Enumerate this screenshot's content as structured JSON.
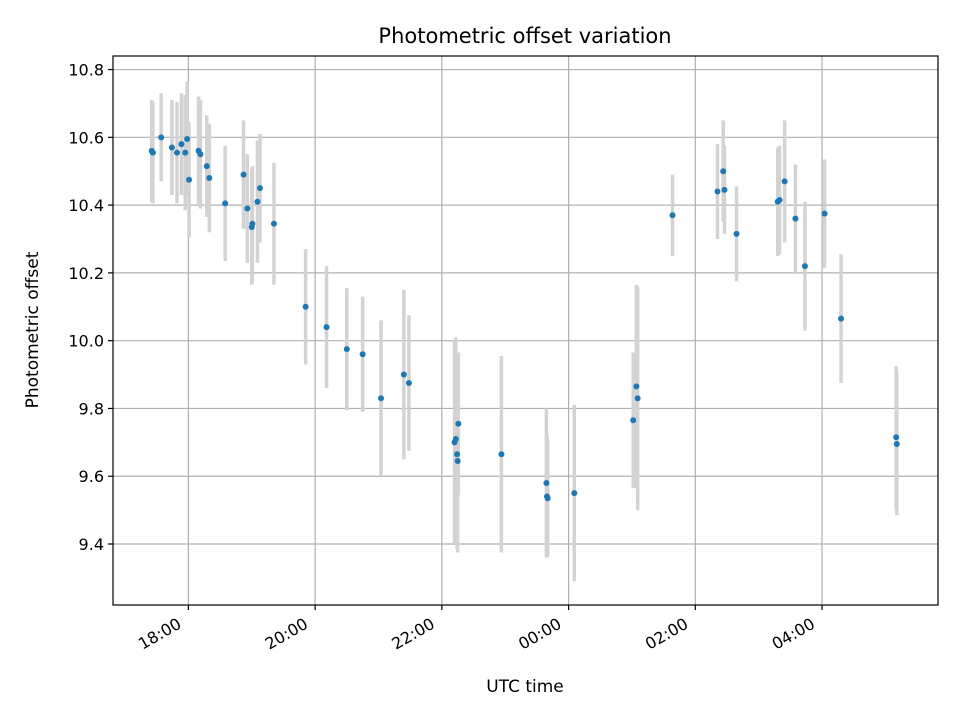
{
  "chart_data": {
    "type": "scatter",
    "title": "Photometric offset variation",
    "xlabel": "UTC time",
    "ylabel": "Photometric offset",
    "x_unit": "hours since 00:00 (negative = previous day)",
    "xlim": [
      -7.19,
      5.83
    ],
    "ylim": [
      9.22,
      10.84
    ],
    "grid": true,
    "marker_color": "#1f77b4",
    "errorbar_color": "#d3d3d3",
    "x_ticks": [
      {
        "value": -6,
        "label": "18:00"
      },
      {
        "value": -4,
        "label": "20:00"
      },
      {
        "value": -2,
        "label": "22:00"
      },
      {
        "value": 0,
        "label": "00:00"
      },
      {
        "value": 2,
        "label": "02:00"
      },
      {
        "value": 4,
        "label": "04:00"
      }
    ],
    "y_ticks": [
      {
        "value": 9.4,
        "label": "9.4"
      },
      {
        "value": 9.6,
        "label": "9.6"
      },
      {
        "value": 9.8,
        "label": "9.8"
      },
      {
        "value": 10.0,
        "label": "10.0"
      },
      {
        "value": 10.2,
        "label": "10.2"
      },
      {
        "value": 10.4,
        "label": "10.4"
      },
      {
        "value": 10.6,
        "label": "10.6"
      },
      {
        "value": 10.8,
        "label": "10.8"
      }
    ],
    "points": [
      {
        "x": -6.58,
        "y": 10.56,
        "err": 0.15
      },
      {
        "x": -6.56,
        "y": 10.555,
        "err": 0.15
      },
      {
        "x": -6.43,
        "y": 10.6,
        "err": 0.13
      },
      {
        "x": -6.26,
        "y": 10.57,
        "err": 0.14
      },
      {
        "x": -6.18,
        "y": 10.555,
        "err": 0.15
      },
      {
        "x": -6.11,
        "y": 10.58,
        "err": 0.15
      },
      {
        "x": -6.05,
        "y": 10.555,
        "err": 0.17
      },
      {
        "x": -6.02,
        "y": 10.595,
        "err": 0.17
      },
      {
        "x": -5.99,
        "y": 10.475,
        "err": 0.17
      },
      {
        "x": -5.84,
        "y": 10.56,
        "err": 0.16
      },
      {
        "x": -5.81,
        "y": 10.55,
        "err": 0.16
      },
      {
        "x": -5.71,
        "y": 10.515,
        "err": 0.15
      },
      {
        "x": -5.67,
        "y": 10.48,
        "err": 0.16
      },
      {
        "x": -5.42,
        "y": 10.405,
        "err": 0.17
      },
      {
        "x": -5.13,
        "y": 10.49,
        "err": 0.16
      },
      {
        "x": -5.07,
        "y": 10.39,
        "err": 0.16
      },
      {
        "x": -5.0,
        "y": 10.335,
        "err": 0.17
      },
      {
        "x": -4.99,
        "y": 10.345,
        "err": 0.17
      },
      {
        "x": -4.91,
        "y": 10.41,
        "err": 0.18
      },
      {
        "x": -4.87,
        "y": 10.45,
        "err": 0.16
      },
      {
        "x": -4.65,
        "y": 10.345,
        "err": 0.18
      },
      {
        "x": -4.15,
        "y": 10.1,
        "err": 0.17
      },
      {
        "x": -3.82,
        "y": 10.04,
        "err": 0.18
      },
      {
        "x": -3.5,
        "y": 9.975,
        "err": 0.18
      },
      {
        "x": -3.25,
        "y": 9.96,
        "err": 0.17
      },
      {
        "x": -2.96,
        "y": 9.83,
        "err": 0.23
      },
      {
        "x": -2.6,
        "y": 9.9,
        "err": 0.25
      },
      {
        "x": -2.52,
        "y": 9.875,
        "err": 0.2
      },
      {
        "x": -1.8,
        "y": 9.7,
        "err": 0.3
      },
      {
        "x": -1.78,
        "y": 9.71,
        "err": 0.3
      },
      {
        "x": -1.76,
        "y": 9.665,
        "err": 0.28
      },
      {
        "x": -1.75,
        "y": 9.645,
        "err": 0.27
      },
      {
        "x": -1.74,
        "y": 9.755,
        "err": 0.21
      },
      {
        "x": -1.06,
        "y": 9.665,
        "err": 0.29
      },
      {
        "x": -0.35,
        "y": 9.58,
        "err": 0.22
      },
      {
        "x": -0.34,
        "y": 9.54,
        "err": 0.18
      },
      {
        "x": -0.33,
        "y": 9.535,
        "err": 0.17
      },
      {
        "x": 0.09,
        "y": 9.55,
        "err": 0.26
      },
      {
        "x": 1.02,
        "y": 9.765,
        "err": 0.2
      },
      {
        "x": 1.07,
        "y": 9.865,
        "err": 0.3
      },
      {
        "x": 1.09,
        "y": 9.83,
        "err": 0.33
      },
      {
        "x": 1.64,
        "y": 10.37,
        "err": 0.12
      },
      {
        "x": 2.35,
        "y": 10.44,
        "err": 0.14
      },
      {
        "x": 2.44,
        "y": 10.5,
        "err": 0.15
      },
      {
        "x": 2.46,
        "y": 10.445,
        "err": 0.13
      },
      {
        "x": 2.65,
        "y": 10.315,
        "err": 0.14
      },
      {
        "x": 3.3,
        "y": 10.41,
        "err": 0.16
      },
      {
        "x": 3.33,
        "y": 10.415,
        "err": 0.16
      },
      {
        "x": 3.41,
        "y": 10.47,
        "err": 0.18
      },
      {
        "x": 3.58,
        "y": 10.36,
        "err": 0.16
      },
      {
        "x": 3.73,
        "y": 10.22,
        "err": 0.19
      },
      {
        "x": 4.04,
        "y": 10.375,
        "err": 0.16
      },
      {
        "x": 4.3,
        "y": 10.065,
        "err": 0.19
      },
      {
        "x": 5.17,
        "y": 9.715,
        "err": 0.21
      },
      {
        "x": 5.18,
        "y": 9.695,
        "err": 0.21
      }
    ]
  }
}
